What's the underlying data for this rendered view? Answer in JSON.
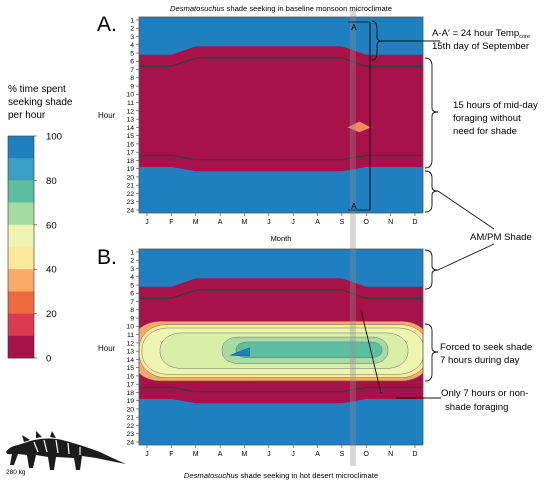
{
  "legend": {
    "title_lines": [
      "% time spent",
      "seeking shade",
      "per hour"
    ],
    "ticks": [
      "100",
      "80",
      "60",
      "40",
      "20",
      "0"
    ],
    "colors": [
      "#1f7fbf",
      "#3a9fc2",
      "#5cbf9f",
      "#a6dca4",
      "#eef5b0",
      "#fde99a",
      "#fba966",
      "#ef6a3f",
      "#d93b4f",
      "#a8124a"
    ]
  },
  "chart_data": [
    {
      "type": "heatmap",
      "panel_label": "A.",
      "title_italic": "Desmatosuchus",
      "title_rest": " shade seeking in baseline monsoon microclimate",
      "xlabel": "Month",
      "ylabel": "Hour",
      "x_categories": [
        "J",
        "F",
        "M",
        "A",
        "M",
        "J",
        "J",
        "A",
        "S",
        "O",
        "N",
        "D"
      ],
      "y_categories": [
        "1",
        "2",
        "3",
        "4",
        "5",
        "6",
        "7",
        "8",
        "9",
        "10",
        "11",
        "12",
        "13",
        "14",
        "15",
        "16",
        "17",
        "18",
        "19",
        "20",
        "21",
        "22",
        "23",
        "24"
      ],
      "value_range": [
        0,
        100
      ],
      "shade_bands": [
        {
          "month": "J",
          "morning_shade_until_hour": 5,
          "evening_shade_from_hour": 19
        },
        {
          "month": "F",
          "morning_shade_until_hour": 5,
          "evening_shade_from_hour": 19
        },
        {
          "month": "M",
          "morning_shade_until_hour": 4,
          "evening_shade_from_hour": 19.5
        },
        {
          "month": "A",
          "morning_shade_until_hour": 4,
          "evening_shade_from_hour": 19.5
        },
        {
          "month": "M",
          "morning_shade_until_hour": 4,
          "evening_shade_from_hour": 19.5
        },
        {
          "month": "J",
          "morning_shade_until_hour": 4,
          "evening_shade_from_hour": 19.5
        },
        {
          "month": "J",
          "morning_shade_until_hour": 4,
          "evening_shade_from_hour": 19.5
        },
        {
          "month": "A",
          "morning_shade_until_hour": 4,
          "evening_shade_from_hour": 19.5
        },
        {
          "month": "S",
          "morning_shade_until_hour": 4,
          "evening_shade_from_hour": 19.5
        },
        {
          "month": "O",
          "morning_shade_until_hour": 5,
          "evening_shade_from_hour": 19
        },
        {
          "month": "N",
          "morning_shade_until_hour": 5,
          "evening_shade_from_hour": 19
        },
        {
          "month": "D",
          "morning_shade_until_hour": 5,
          "evening_shade_from_hour": 19
        }
      ],
      "midday_spot": {
        "month": "O",
        "hour": 14,
        "value": 30
      },
      "marker": {
        "month_position": 9.45,
        "top_label": "A",
        "bottom_label": "A"
      }
    },
    {
      "type": "heatmap",
      "panel_label": "B.",
      "title_italic": "Desmatosuchus",
      "title_rest": " shade seeking in hot desert microclimate",
      "ylabel": "Hour",
      "x_categories": [
        "J",
        "F",
        "M",
        "A",
        "M",
        "J",
        "J",
        "A",
        "S",
        "O",
        "N",
        "D"
      ],
      "y_categories": [
        "1",
        "2",
        "3",
        "4",
        "5",
        "6",
        "7",
        "8",
        "9",
        "10",
        "11",
        "12",
        "13",
        "14",
        "15",
        "16",
        "17",
        "18",
        "19",
        "20",
        "21",
        "22",
        "23",
        "24"
      ],
      "value_range": [
        0,
        100
      ],
      "midday_shade_hours": "10-16",
      "midday_peak_value": 85,
      "marker": {
        "month_position": 9.45
      }
    }
  ],
  "annotations": {
    "aa_line1_prefix": "A-A′ = 24 hour Temp",
    "aa_line1_sub": "core",
    "aa_line2": "15th day of September",
    "foraging_lines": [
      "15 hours of mid-day",
      "foraging without",
      "need for shade"
    ],
    "ampm": "AM/PM Shade",
    "forced_lines": [
      "Forced to seek shade",
      "7 hours during day"
    ],
    "only_lines": [
      "Only 7 hours or non-",
      "shade foraging"
    ]
  },
  "silhouette": {
    "mass_label": "280 kg"
  }
}
